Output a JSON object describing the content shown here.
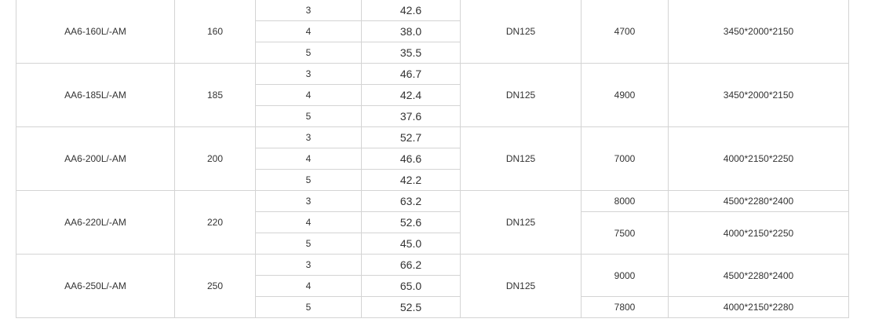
{
  "groups": [
    {
      "model": "AA6-160L/-AM",
      "flow": "160",
      "rows": [
        {
          "stage": "3",
          "value": "42.6"
        },
        {
          "stage": "4",
          "value": "38.0"
        },
        {
          "stage": "5",
          "value": "35.5"
        }
      ],
      "outlet": "DN125",
      "specs": [
        {
          "weight": "4700",
          "dimensions": "3450*2000*2150",
          "stages": [
            "3",
            "4",
            "5"
          ]
        }
      ]
    },
    {
      "model": "AA6-185L/-AM",
      "flow": "185",
      "rows": [
        {
          "stage": "3",
          "value": "46.7"
        },
        {
          "stage": "4",
          "value": "42.4"
        },
        {
          "stage": "5",
          "value": "37.6"
        }
      ],
      "outlet": "DN125",
      "specs": [
        {
          "weight": "4900",
          "dimensions": "3450*2000*2150",
          "stages": [
            "3",
            "4",
            "5"
          ]
        }
      ]
    },
    {
      "model": "AA6-200L/-AM",
      "flow": "200",
      "rows": [
        {
          "stage": "3",
          "value": "52.7"
        },
        {
          "stage": "4",
          "value": "46.6"
        },
        {
          "stage": "5",
          "value": "42.2"
        }
      ],
      "outlet": "DN125",
      "specs": [
        {
          "weight": "7000",
          "dimensions": "4000*2150*2250",
          "stages": [
            "3",
            "4",
            "5"
          ]
        }
      ]
    },
    {
      "model": "AA6-220L/-AM",
      "flow": "220",
      "rows": [
        {
          "stage": "3",
          "value": "63.2"
        },
        {
          "stage": "4",
          "value": "52.6"
        },
        {
          "stage": "5",
          "value": "45.0"
        }
      ],
      "outlet": "DN125",
      "specs": [
        {
          "weight": "8000",
          "dimensions": "4500*2280*2400",
          "stages": [
            "3"
          ]
        },
        {
          "weight": "7500",
          "dimensions": "4000*2150*2250",
          "stages": [
            "4",
            "5"
          ]
        }
      ]
    },
    {
      "model": "AA6-250L/-AM",
      "flow": "250",
      "rows": [
        {
          "stage": "3",
          "value": "66.2"
        },
        {
          "stage": "4",
          "value": "65.0"
        },
        {
          "stage": "5",
          "value": "52.5"
        }
      ],
      "outlet": "DN125",
      "specs": [
        {
          "weight": "9000",
          "dimensions": "4500*2280*2400",
          "stages": [
            "3",
            "4"
          ]
        },
        {
          "weight": "7800",
          "dimensions": "4000*2150*2280",
          "stages": [
            "5"
          ]
        }
      ]
    }
  ]
}
